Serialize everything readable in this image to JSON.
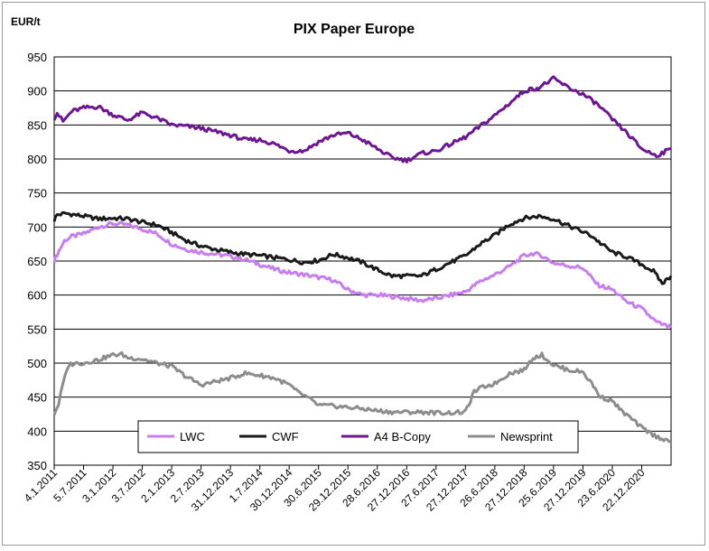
{
  "chart_data": {
    "type": "line",
    "title": "PIX Paper Europe",
    "ylabel": "EUR/t",
    "xlabel": "",
    "ylim": [
      350,
      950
    ],
    "yticks": [
      350,
      400,
      450,
      500,
      550,
      600,
      650,
      700,
      750,
      800,
      850,
      900,
      950
    ],
    "grid": "horizontal",
    "legend_position": "bottom-center",
    "x_tick_labels": [
      "4.1.2011",
      "5.7.2011",
      "3.1.2012",
      "3.7.2012",
      "2.1.2013",
      "2.7.2013",
      "31.12.2013",
      "1.7.2014",
      "30.12.2014",
      "30.6.2015",
      "29.12.2015",
      "28.6.2016",
      "27.12.2016",
      "27.6.2017",
      "27.12.2017",
      "26.6.2018",
      "27.12.2018",
      "25.6.2019",
      "27.12.2019",
      "23.6.2020",
      "22.12.2020"
    ],
    "x_index_range": [
      0,
      21
    ],
    "series": [
      {
        "name": "LWC",
        "color": "#c77df0",
        "x": [
          0,
          0.1,
          0.35,
          0.6,
          1,
          1.5,
          2,
          2.5,
          3,
          3.5,
          4,
          4.5,
          5,
          5.5,
          6,
          6.5,
          7,
          7.5,
          8,
          8.5,
          9,
          9.5,
          10,
          10.5,
          11,
          11.5,
          12,
          12.5,
          13,
          13.5,
          14,
          14.5,
          15,
          15.5,
          16,
          16.3,
          16.6,
          17,
          17.5,
          18,
          18.5,
          19,
          19.5,
          20,
          20.5,
          21
        ],
        "y": [
          650,
          660,
          680,
          686,
          690,
          700,
          705,
          703,
          697,
          690,
          675,
          667,
          663,
          660,
          657,
          652,
          645,
          638,
          633,
          630,
          626,
          622,
          608,
          600,
          600,
          598,
          595,
          592,
          595,
          600,
          605,
          620,
          630,
          642,
          658,
          661,
          658,
          647,
          643,
          640,
          615,
          608,
          590,
          580,
          560,
          552
        ]
      },
      {
        "name": "CWF",
        "color": "#1a1a1a",
        "x": [
          0,
          0.1,
          0.4,
          1,
          1.5,
          2,
          2.5,
          3,
          3.5,
          4,
          4.5,
          5,
          5.5,
          6,
          6.5,
          7,
          7.5,
          8,
          8.5,
          9,
          9.5,
          10,
          10.5,
          11,
          11.5,
          12,
          12.5,
          13,
          13.5,
          14,
          14.5,
          15,
          15.5,
          16,
          16.5,
          17,
          17.5,
          18,
          18.3,
          18.6,
          19,
          19.5,
          20,
          20.4,
          20.7,
          21
        ],
        "y": [
          710,
          718,
          720,
          716,
          712,
          713,
          712,
          707,
          703,
          692,
          680,
          672,
          667,
          663,
          660,
          658,
          655,
          652,
          648,
          651,
          660,
          655,
          648,
          637,
          628,
          628,
          628,
          638,
          648,
          658,
          675,
          688,
          704,
          713,
          716,
          712,
          702,
          693,
          687,
          676,
          663,
          656,
          645,
          635,
          617,
          628
        ]
      },
      {
        "name": "A4 B-Copy",
        "color": "#6d1593",
        "x": [
          0,
          0.1,
          0.3,
          0.6,
          1,
          1.5,
          2,
          2.5,
          3,
          3.5,
          4,
          4.5,
          5,
          5.5,
          6,
          6.5,
          7,
          7.5,
          8,
          8.5,
          9,
          9.5,
          10,
          10.5,
          11,
          11.5,
          12,
          12.5,
          13,
          13.5,
          14,
          14.5,
          15,
          15.5,
          16,
          16.5,
          17,
          17.5,
          18,
          18.5,
          19,
          19.5,
          20,
          20.5,
          21
        ],
        "y": [
          860,
          868,
          855,
          870,
          875,
          877,
          865,
          857,
          868,
          860,
          850,
          848,
          845,
          840,
          835,
          828,
          828,
          822,
          812,
          812,
          825,
          835,
          838,
          828,
          815,
          802,
          798,
          808,
          812,
          822,
          832,
          848,
          864,
          882,
          900,
          905,
          918,
          905,
          895,
          880,
          858,
          838,
          815,
          805,
          815
        ]
      },
      {
        "name": "Newsprint",
        "color": "#8c8c8c",
        "x": [
          0,
          0.15,
          0.3,
          0.5,
          0.8,
          1,
          1.5,
          2,
          2.3,
          2.5,
          3,
          3.5,
          4,
          4.5,
          5,
          5.5,
          6,
          6.5,
          7,
          7.5,
          8,
          8.3,
          8.6,
          9,
          9.5,
          10,
          10.5,
          11,
          11.5,
          12,
          12.5,
          13,
          13.5,
          14,
          14.3,
          14.6,
          15,
          15.5,
          16,
          16.3,
          16.6,
          17,
          17.5,
          18,
          18.3,
          18.6,
          19,
          19.3,
          19.6,
          20,
          20.5,
          21
        ],
        "y": [
          425,
          440,
          470,
          498,
          500,
          500,
          505,
          512,
          513,
          508,
          506,
          500,
          495,
          480,
          468,
          473,
          478,
          485,
          482,
          478,
          468,
          457,
          450,
          438,
          437,
          435,
          433,
          430,
          428,
          428,
          428,
          427,
          427,
          428,
          458,
          465,
          470,
          485,
          490,
          508,
          512,
          497,
          490,
          487,
          470,
          450,
          445,
          430,
          420,
          405,
          392,
          385
        ]
      }
    ]
  }
}
